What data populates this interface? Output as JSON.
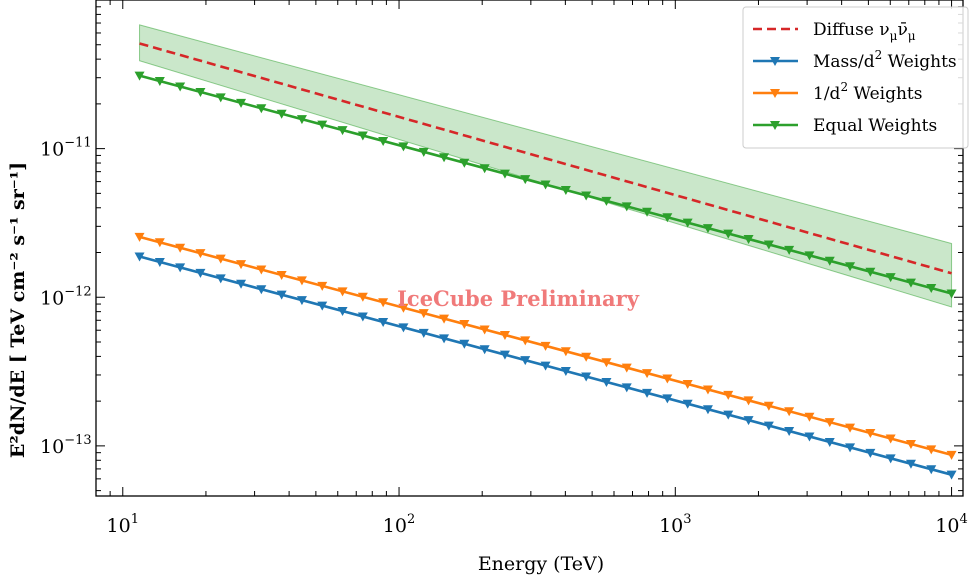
{
  "chart_data": {
    "type": "line",
    "xscale": "log",
    "yscale": "log",
    "xlim": [
      8.0,
      11000
    ],
    "ylim": [
      4.6e-14,
      1e-10
    ],
    "xlabel": "Energy (TeV)",
    "ylabel": "E²dN/dE [ TeV cm⁻² s⁻¹ sr⁻¹]",
    "x_ticks": [
      {
        "value": 10,
        "base": "10",
        "exp": "1"
      },
      {
        "value": 100,
        "base": "10",
        "exp": "2"
      },
      {
        "value": 1000,
        "base": "10",
        "exp": "3"
      },
      {
        "value": 10000,
        "base": "10",
        "exp": "4"
      }
    ],
    "y_ticks": [
      {
        "value": 1e-11,
        "base": "10",
        "exp": "−11"
      },
      {
        "value": 1e-12,
        "base": "10",
        "exp": "−12"
      },
      {
        "value": 1e-13,
        "base": "10",
        "exp": "−13"
      }
    ],
    "watermark": "IceCube Preliminary",
    "legend_position": "top-right",
    "series": [
      {
        "name": "Diffuse νμν̄μ",
        "style": "dashed",
        "color": "#d62728",
        "x": [
          11.5,
          10000
        ],
        "y": [
          5.1e-11,
          1.45e-12
        ],
        "band_lower": [
          3.9e-11,
          8.6e-13
        ],
        "band_upper": [
          6.8e-11,
          2.3e-12
        ],
        "band_color": "#2ca02c"
      },
      {
        "name": "Mass/d² Weights",
        "style": "solid",
        "marker": "down-triangle",
        "color": "#1f77b4",
        "x": [
          11.5,
          10000
        ],
        "y": [
          1.88e-12,
          6.4e-14
        ]
      },
      {
        "name": "1/d² Weights",
        "style": "solid",
        "marker": "down-triangle",
        "color": "#ff7f0e",
        "x": [
          11.5,
          10000
        ],
        "y": [
          2.55e-12,
          8.7e-14
        ]
      },
      {
        "name": "Equal Weights",
        "style": "solid",
        "marker": "down-triangle",
        "color": "#2ca02c",
        "x": [
          11.5,
          10000
        ],
        "y": [
          3.1e-11,
          1.06e-12
        ]
      }
    ],
    "legend": [
      {
        "label_main": "Diffuse ν",
        "sub1": "μ",
        "mid": "ν̄",
        "sub2": "μ",
        "tail": "",
        "series": 0
      },
      {
        "label_main": "Mass/d",
        "sup": "2",
        "tail": " Weights",
        "series": 1
      },
      {
        "label_main": "1/d",
        "sup": "2",
        "tail": " Weights",
        "series": 2
      },
      {
        "label_main": "Equal Weights",
        "tail": "",
        "series": 3
      }
    ]
  }
}
